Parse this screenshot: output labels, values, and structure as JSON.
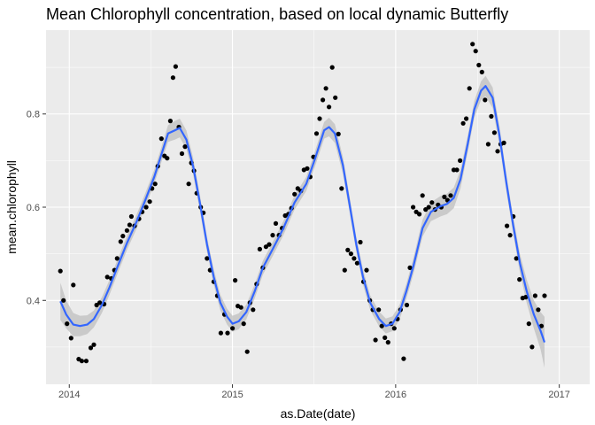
{
  "chart_data": {
    "type": "scatter",
    "title": "Mean Chlorophyll concentration, based on local dynamic Butterfly",
    "xlabel": "as.Date(date)",
    "ylabel": "mean.chlorophyll",
    "x_ticks": [
      "2014",
      "2015",
      "2016",
      "2017"
    ],
    "x_tick_values": [
      "2014-01-01",
      "2015-01-01",
      "2016-01-01",
      "2017-01-01"
    ],
    "y_ticks": [
      "0.4",
      "0.6",
      "0.8"
    ],
    "y_tick_values": [
      0.4,
      0.6,
      0.8
    ],
    "xlim": [
      "2013-11-10",
      "2017-03-10"
    ],
    "ylim": [
      0.22,
      0.98
    ],
    "grid": true,
    "colors": {
      "panel": "#ebebeb",
      "grid": "#ffffff",
      "points": "#000000",
      "smooth_line": "#3366ff",
      "ribbon": "#bfbfbf"
    },
    "series": [
      {
        "type": "points",
        "points": [
          [
            "2013-12-12",
            0.463
          ],
          [
            "2013-12-19",
            0.4
          ],
          [
            "2013-12-27",
            0.35
          ],
          [
            "2014-01-05",
            0.319
          ],
          [
            "2014-01-10",
            0.433
          ],
          [
            "2014-01-22",
            0.274
          ],
          [
            "2014-01-29",
            0.27
          ],
          [
            "2014-02-08",
            0.27
          ],
          [
            "2014-02-18",
            0.298
          ],
          [
            "2014-02-25",
            0.305
          ],
          [
            "2014-03-03",
            0.39
          ],
          [
            "2014-03-10",
            0.395
          ],
          [
            "2014-03-20",
            0.392
          ],
          [
            "2014-03-27",
            0.45
          ],
          [
            "2014-04-05",
            0.447
          ],
          [
            "2014-04-12",
            0.465
          ],
          [
            "2014-04-18",
            0.49
          ],
          [
            "2014-04-26",
            0.526
          ],
          [
            "2014-05-01",
            0.538
          ],
          [
            "2014-05-10",
            0.55
          ],
          [
            "2014-05-16",
            0.562
          ],
          [
            "2014-05-20",
            0.58
          ],
          [
            "2014-05-27",
            0.56
          ],
          [
            "2014-06-06",
            0.575
          ],
          [
            "2014-06-13",
            0.59
          ],
          [
            "2014-06-22",
            0.6
          ],
          [
            "2014-06-30",
            0.612
          ],
          [
            "2014-07-05",
            0.64
          ],
          [
            "2014-07-12",
            0.65
          ],
          [
            "2014-07-18",
            0.688
          ],
          [
            "2014-07-26",
            0.747
          ],
          [
            "2014-08-02",
            0.71
          ],
          [
            "2014-08-08",
            0.705
          ],
          [
            "2014-08-15",
            0.785
          ],
          [
            "2014-08-21",
            0.878
          ],
          [
            "2014-08-27",
            0.902
          ],
          [
            "2014-09-03",
            0.772
          ],
          [
            "2014-09-10",
            0.715
          ],
          [
            "2014-09-17",
            0.73
          ],
          [
            "2014-09-25",
            0.65
          ],
          [
            "2014-10-01",
            0.695
          ],
          [
            "2014-10-07",
            0.678
          ],
          [
            "2014-10-13",
            0.63
          ],
          [
            "2014-10-22",
            0.6
          ],
          [
            "2014-10-28",
            0.588
          ],
          [
            "2014-11-05",
            0.49
          ],
          [
            "2014-11-12",
            0.465
          ],
          [
            "2014-11-20",
            0.44
          ],
          [
            "2014-11-28",
            0.41
          ],
          [
            "2014-12-06",
            0.33
          ],
          [
            "2014-12-14",
            0.37
          ],
          [
            "2014-12-21",
            0.33
          ],
          [
            "2015-01-01",
            0.34
          ],
          [
            "2015-01-07",
            0.443
          ],
          [
            "2015-01-13",
            0.388
          ],
          [
            "2015-01-20",
            0.385
          ],
          [
            "2015-01-26",
            0.35
          ],
          [
            "2015-02-03",
            0.29
          ],
          [
            "2015-02-09",
            0.395
          ],
          [
            "2015-02-16",
            0.38
          ],
          [
            "2015-02-24",
            0.435
          ],
          [
            "2015-03-03",
            0.51
          ],
          [
            "2015-03-10",
            0.47
          ],
          [
            "2015-03-17",
            0.515
          ],
          [
            "2015-03-24",
            0.52
          ],
          [
            "2015-04-01",
            0.54
          ],
          [
            "2015-04-08",
            0.565
          ],
          [
            "2015-04-15",
            0.54
          ],
          [
            "2015-04-22",
            0.555
          ],
          [
            "2015-04-29",
            0.582
          ],
          [
            "2015-05-06",
            0.585
          ],
          [
            "2015-05-13",
            0.598
          ],
          [
            "2015-05-20",
            0.628
          ],
          [
            "2015-05-27",
            0.64
          ],
          [
            "2015-06-03",
            0.635
          ],
          [
            "2015-06-10",
            0.68
          ],
          [
            "2015-06-17",
            0.683
          ],
          [
            "2015-06-24",
            0.665
          ],
          [
            "2015-07-01",
            0.708
          ],
          [
            "2015-07-08",
            0.758
          ],
          [
            "2015-07-15",
            0.79
          ],
          [
            "2015-07-22",
            0.83
          ],
          [
            "2015-07-29",
            0.855
          ],
          [
            "2015-08-05",
            0.815
          ],
          [
            "2015-08-12",
            0.9
          ],
          [
            "2015-08-19",
            0.835
          ],
          [
            "2015-08-26",
            0.757
          ],
          [
            "2015-09-02",
            0.64
          ],
          [
            "2015-09-09",
            0.465
          ],
          [
            "2015-09-16",
            0.508
          ],
          [
            "2015-09-23",
            0.5
          ],
          [
            "2015-09-30",
            0.49
          ],
          [
            "2015-10-07",
            0.48
          ],
          [
            "2015-10-14",
            0.525
          ],
          [
            "2015-10-21",
            0.44
          ],
          [
            "2015-10-28",
            0.465
          ],
          [
            "2015-11-04",
            0.4
          ],
          [
            "2015-11-11",
            0.38
          ],
          [
            "2015-11-17",
            0.315
          ],
          [
            "2015-11-24",
            0.38
          ],
          [
            "2015-12-01",
            0.345
          ],
          [
            "2015-12-08",
            0.32
          ],
          [
            "2015-12-15",
            0.31
          ],
          [
            "2015-12-22",
            0.35
          ],
          [
            "2015-12-29",
            0.34
          ],
          [
            "2016-01-05",
            0.36
          ],
          [
            "2016-01-12",
            0.38
          ],
          [
            "2016-01-19",
            0.275
          ],
          [
            "2016-01-26",
            0.39
          ],
          [
            "2016-02-02",
            0.47
          ],
          [
            "2016-02-09",
            0.6
          ],
          [
            "2016-02-16",
            0.59
          ],
          [
            "2016-02-23",
            0.585
          ],
          [
            "2016-03-01",
            0.625
          ],
          [
            "2016-03-08",
            0.595
          ],
          [
            "2016-03-15",
            0.6
          ],
          [
            "2016-03-22",
            0.61
          ],
          [
            "2016-03-29",
            0.595
          ],
          [
            "2016-04-05",
            0.605
          ],
          [
            "2016-04-12",
            0.6
          ],
          [
            "2016-04-19",
            0.622
          ],
          [
            "2016-04-26",
            0.615
          ],
          [
            "2016-05-03",
            0.625
          ],
          [
            "2016-05-10",
            0.68
          ],
          [
            "2016-05-17",
            0.68
          ],
          [
            "2016-05-24",
            0.7
          ],
          [
            "2016-05-31",
            0.78
          ],
          [
            "2016-06-07",
            0.79
          ],
          [
            "2016-06-14",
            0.855
          ],
          [
            "2016-06-21",
            0.95
          ],
          [
            "2016-06-28",
            0.935
          ],
          [
            "2016-07-05",
            0.905
          ],
          [
            "2016-07-12",
            0.89
          ],
          [
            "2016-07-19",
            0.83
          ],
          [
            "2016-07-26",
            0.735
          ],
          [
            "2016-08-02",
            0.795
          ],
          [
            "2016-08-09",
            0.76
          ],
          [
            "2016-08-16",
            0.72
          ],
          [
            "2016-08-23",
            0.735
          ],
          [
            "2016-08-30",
            0.738
          ],
          [
            "2016-09-06",
            0.56
          ],
          [
            "2016-09-13",
            0.54
          ],
          [
            "2016-09-20",
            0.58
          ],
          [
            "2016-09-27",
            0.49
          ],
          [
            "2016-10-04",
            0.445
          ],
          [
            "2016-10-11",
            0.405
          ],
          [
            "2016-10-18",
            0.407
          ],
          [
            "2016-10-25",
            0.35
          ],
          [
            "2016-11-01",
            0.3
          ],
          [
            "2016-11-08",
            0.41
          ],
          [
            "2016-11-15",
            0.38
          ],
          [
            "2016-11-22",
            0.345
          ],
          [
            "2016-11-29",
            0.41
          ]
        ]
      },
      {
        "type": "smooth",
        "line": [
          [
            "2013-12-12",
            0.398
          ],
          [
            "2013-12-25",
            0.37
          ],
          [
            "2014-01-10",
            0.348
          ],
          [
            "2014-01-25",
            0.345
          ],
          [
            "2014-02-10",
            0.348
          ],
          [
            "2014-02-25",
            0.36
          ],
          [
            "2014-03-15",
            0.39
          ],
          [
            "2014-04-01",
            0.428
          ],
          [
            "2014-04-20",
            0.475
          ],
          [
            "2014-05-10",
            0.523
          ],
          [
            "2014-06-01",
            0.57
          ],
          [
            "2014-06-20",
            0.615
          ],
          [
            "2014-07-10",
            0.665
          ],
          [
            "2014-07-25",
            0.71
          ],
          [
            "2014-08-10",
            0.758
          ],
          [
            "2014-08-25",
            0.765
          ],
          [
            "2014-09-05",
            0.77
          ],
          [
            "2014-09-20",
            0.745
          ],
          [
            "2014-10-05",
            0.688
          ],
          [
            "2014-10-20",
            0.61
          ],
          [
            "2014-11-05",
            0.52
          ],
          [
            "2014-11-20",
            0.45
          ],
          [
            "2014-12-05",
            0.395
          ],
          [
            "2014-12-20",
            0.365
          ],
          [
            "2015-01-01",
            0.35
          ],
          [
            "2015-01-15",
            0.355
          ],
          [
            "2015-02-01",
            0.375
          ],
          [
            "2015-02-20",
            0.42
          ],
          [
            "2015-03-10",
            0.47
          ],
          [
            "2015-04-01",
            0.51
          ],
          [
            "2015-04-25",
            0.555
          ],
          [
            "2015-05-20",
            0.61
          ],
          [
            "2015-06-15",
            0.65
          ],
          [
            "2015-07-05",
            0.705
          ],
          [
            "2015-07-25",
            0.765
          ],
          [
            "2015-08-05",
            0.772
          ],
          [
            "2015-08-18",
            0.758
          ],
          [
            "2015-09-05",
            0.69
          ],
          [
            "2015-09-20",
            0.605
          ],
          [
            "2015-10-05",
            0.52
          ],
          [
            "2015-10-20",
            0.45
          ],
          [
            "2015-11-05",
            0.395
          ],
          [
            "2015-11-25",
            0.36
          ],
          [
            "2015-12-10",
            0.345
          ],
          [
            "2015-12-25",
            0.35
          ],
          [
            "2016-01-10",
            0.375
          ],
          [
            "2016-01-25",
            0.42
          ],
          [
            "2016-02-10",
            0.475
          ],
          [
            "2016-03-01",
            0.555
          ],
          [
            "2016-03-20",
            0.59
          ],
          [
            "2016-04-10",
            0.602
          ],
          [
            "2016-04-25",
            0.607
          ],
          [
            "2016-05-10",
            0.62
          ],
          [
            "2016-05-25",
            0.66
          ],
          [
            "2016-06-10",
            0.735
          ],
          [
            "2016-06-25",
            0.81
          ],
          [
            "2016-07-10",
            0.85
          ],
          [
            "2016-07-20",
            0.86
          ],
          [
            "2016-08-05",
            0.835
          ],
          [
            "2016-08-20",
            0.755
          ],
          [
            "2016-09-05",
            0.65
          ],
          [
            "2016-09-20",
            0.56
          ],
          [
            "2016-10-05",
            0.48
          ],
          [
            "2016-10-20",
            0.42
          ],
          [
            "2016-11-05",
            0.37
          ],
          [
            "2016-11-20",
            0.335
          ],
          [
            "2016-11-29",
            0.31
          ]
        ],
        "ribbon_halfwidth": [
          0.04,
          0.03,
          0.025,
          0.022,
          0.02,
          0.018,
          0.017,
          0.016,
          0.015,
          0.015,
          0.015,
          0.015,
          0.015,
          0.016,
          0.018,
          0.02,
          0.02,
          0.02,
          0.018,
          0.017,
          0.016,
          0.016,
          0.017,
          0.017,
          0.017,
          0.017,
          0.016,
          0.015,
          0.015,
          0.015,
          0.015,
          0.015,
          0.015,
          0.016,
          0.018,
          0.02,
          0.02,
          0.018,
          0.017,
          0.016,
          0.016,
          0.016,
          0.016,
          0.016,
          0.016,
          0.016,
          0.016,
          0.017,
          0.018,
          0.02,
          0.022,
          0.022,
          0.022,
          0.02,
          0.018,
          0.018,
          0.02,
          0.022,
          0.022,
          0.02,
          0.018,
          0.018,
          0.02,
          0.025,
          0.03,
          0.04,
          0.055
        ]
      }
    ]
  }
}
